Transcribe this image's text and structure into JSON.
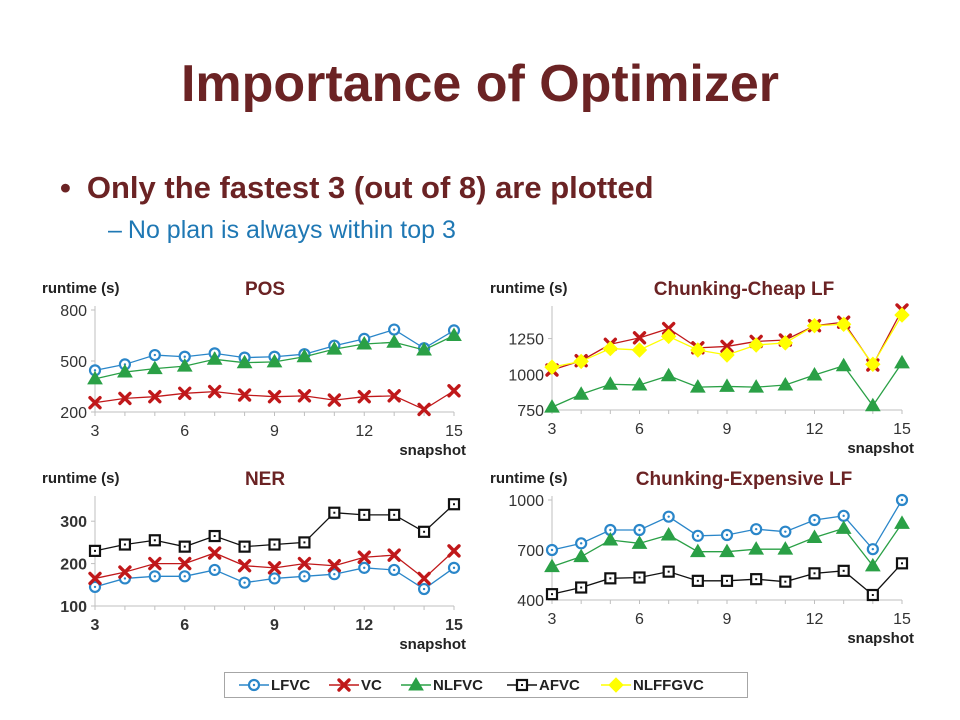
{
  "slide": {
    "title": "Importance of Optimizer",
    "bullet_1": "Only the fastest 3 (out of 8) are plotted",
    "bullet_2": "No plan is always within top 3"
  },
  "colors": {
    "title": "#6b2324",
    "subbullet": "#1f78b4",
    "LFVC": "#2a86c9",
    "VC": "#c0181a",
    "NLFVC": "#2aa046",
    "AFVC": "#111111",
    "NLFFGVC": "#ffff00"
  },
  "legend": [
    "LFVC",
    "VC",
    "NLFVC",
    "AFVC",
    "NLFFGVC"
  ],
  "chart_data": [
    {
      "type": "line",
      "title": "POS",
      "ylabel": "runtime (s)",
      "xlabel": "snapshot",
      "xlim": [
        3,
        15
      ],
      "ylim": [
        200,
        800
      ],
      "xticks": [
        3,
        6,
        9,
        12,
        15
      ],
      "yticks": [
        200,
        500,
        800
      ],
      "x": [
        3,
        4,
        5,
        6,
        7,
        8,
        9,
        10,
        11,
        12,
        13,
        14,
        15
      ],
      "series": [
        {
          "name": "LFVC",
          "values": [
            445,
            480,
            535,
            525,
            545,
            520,
            525,
            540,
            590,
            630,
            685,
            575,
            680
          ]
        },
        {
          "name": "VC",
          "values": [
            255,
            280,
            290,
            310,
            320,
            300,
            290,
            295,
            270,
            290,
            295,
            215,
            325
          ]
        },
        {
          "name": "NLFVC",
          "values": [
            395,
            435,
            455,
            470,
            510,
            490,
            495,
            525,
            570,
            600,
            610,
            565,
            650
          ]
        }
      ]
    },
    {
      "type": "line",
      "title": "Chunking-Cheap LF",
      "ylabel": "runtime (s)",
      "xlabel": "snapshot",
      "xlim": [
        3,
        15
      ],
      "ylim": [
        750,
        1450
      ],
      "xticks": [
        3,
        6,
        9,
        12,
        15
      ],
      "yticks": [
        750,
        1000,
        1250
      ],
      "x": [
        3,
        4,
        5,
        6,
        7,
        8,
        9,
        10,
        11,
        12,
        13,
        14,
        15
      ],
      "series": [
        {
          "name": "VC",
          "values": [
            1030,
            1095,
            1210,
            1255,
            1320,
            1185,
            1195,
            1230,
            1240,
            1340,
            1365,
            1065,
            1450
          ]
        },
        {
          "name": "NLFVC",
          "values": [
            770,
            860,
            930,
            925,
            990,
            910,
            915,
            910,
            925,
            995,
            1060,
            780,
            1080
          ]
        },
        {
          "name": "NLFFGVC",
          "values": [
            1050,
            1090,
            1180,
            1170,
            1265,
            1170,
            1135,
            1205,
            1220,
            1340,
            1350,
            1070,
            1415
          ]
        }
      ]
    },
    {
      "type": "line",
      "title": "NER",
      "ylabel": "runtime (s)",
      "xlabel": "snapshot",
      "xlim": [
        3,
        15
      ],
      "ylim": [
        100,
        350
      ],
      "xticks": [
        3,
        6,
        9,
        12,
        15
      ],
      "yticks": [
        100,
        200,
        300
      ],
      "x": [
        3,
        4,
        5,
        6,
        7,
        8,
        9,
        10,
        11,
        12,
        13,
        14,
        15
      ],
      "series": [
        {
          "name": "LFVC",
          "values": [
            145,
            165,
            170,
            170,
            185,
            155,
            165,
            170,
            175,
            190,
            185,
            140,
            190
          ]
        },
        {
          "name": "VC",
          "values": [
            165,
            180,
            200,
            200,
            225,
            195,
            190,
            200,
            195,
            215,
            220,
            165,
            230
          ]
        },
        {
          "name": "AFVC",
          "values": [
            230,
            245,
            255,
            240,
            265,
            240,
            245,
            250,
            320,
            315,
            315,
            275,
            340
          ]
        }
      ]
    },
    {
      "type": "line",
      "title": "Chunking-Expensive LF",
      "ylabel": "runtime (s)",
      "xlabel": "snapshot",
      "xlim": [
        3,
        15
      ],
      "ylim": [
        400,
        1000
      ],
      "xticks": [
        3,
        6,
        9,
        12,
        15
      ],
      "yticks": [
        400,
        700,
        1000
      ],
      "x": [
        3,
        4,
        5,
        6,
        7,
        8,
        9,
        10,
        11,
        12,
        13,
        14,
        15
      ],
      "series": [
        {
          "name": "LFVC",
          "values": [
            700,
            740,
            820,
            820,
            900,
            785,
            790,
            825,
            810,
            880,
            905,
            705,
            1000
          ]
        },
        {
          "name": "NLFVC",
          "values": [
            600,
            660,
            760,
            740,
            790,
            690,
            690,
            705,
            705,
            775,
            830,
            605,
            860
          ]
        },
        {
          "name": "AFVC",
          "values": [
            435,
            475,
            530,
            535,
            570,
            515,
            515,
            525,
            510,
            560,
            575,
            430,
            620
          ]
        }
      ]
    }
  ]
}
